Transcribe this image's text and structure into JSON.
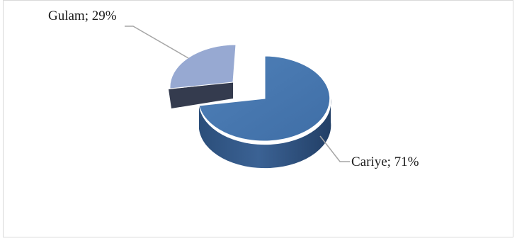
{
  "chart_data": {
    "type": "pie",
    "style": "3d-exploded",
    "slices": [
      {
        "category": "Cariye",
        "value": 71,
        "label": "Cariye; 71%",
        "color": "#4472a8"
      },
      {
        "category": "Gulam",
        "value": 29,
        "label": "Gulam; 29%",
        "color": "#97a9d2"
      }
    ],
    "legend": "none"
  }
}
